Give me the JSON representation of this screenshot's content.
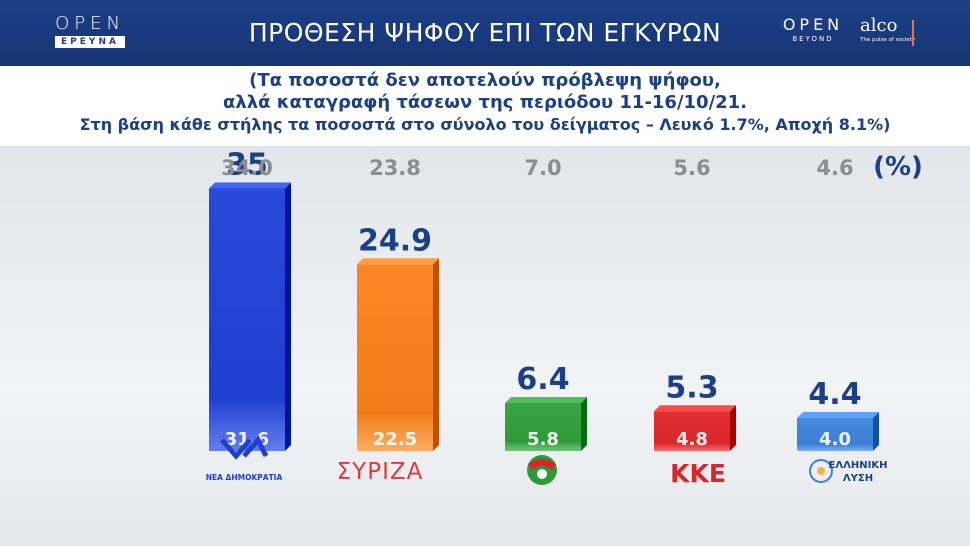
{
  "header": {
    "title": "ΠΡΟΘΕΣΗ ΨΗΦΟΥ ΕΠΙ ΤΩΝ ΕΓΚΥΡΩΝ",
    "logo_left_top": "OPEN",
    "logo_left_bottom": "ΕΡΕΥΝΑ",
    "logo_beyond_top": "OPEN",
    "logo_beyond_bottom": "BEYOND",
    "logo_alco": "alco",
    "logo_alco_tag": "The pulse of society"
  },
  "subtitle": {
    "line1": "(Τα ποσοστά δεν αποτελούν πρόβλεψη ψήφου,",
    "line2": "αλλά καταγραφή τάσεων της περιόδου 11-16/10/21.",
    "line3": "Στη βάση κάθε στήλης τα ποσοστά στο σύνολο του δείγματος – Λευκό 1.7%, Αποχή 8.1%)"
  },
  "colors": {
    "nd": "#1f3fd0",
    "syriza": "#f07d1a",
    "pasok": "#2f9a3a",
    "kke": "#d8262a",
    "el": "#3d7fd6",
    "header": "#1c3f86"
  },
  "chart_data": {
    "type": "bar",
    "unit_label": "(%)",
    "categories": [
      "ΝΕΑ ΔΗΜΟΚΡΑΤΙΑ",
      "ΣΥΡΙΖΑ",
      "ΚΙΝΑΛ",
      "ΚΚΕ",
      "ΕΛΛΗΝΙΚΗ ΛΥΣΗ"
    ],
    "category_labels": {
      "nd_text": "ΝΕΑ ΔΗΜΟΚΡΑΤΙΑ",
      "syriza_text": "ΣΥΡΙΖΑ",
      "kke_text": "ΚΚΕ",
      "el_line1": "ΕΛΛΗΝΙΚΗ",
      "el_line2": "ΛΥΣΗ"
    },
    "series": [
      {
        "values": [
          35,
          24.9,
          6.4,
          5.3,
          4.4
        ],
        "labels": [
          "35",
          "24.9",
          "6.4",
          "5.3",
          "4.4"
        ]
      },
      {
        "values": [
          31.6,
          22.5,
          5.8,
          4.8,
          4.0
        ],
        "labels": [
          "31.6",
          "22.5",
          "5.8",
          "4.8",
          "4.0"
        ]
      },
      {
        "values": [
          34.0,
          23.8,
          7.0,
          5.6,
          4.6
        ],
        "labels": [
          "34.0",
          "23.8",
          "7.0",
          "5.6",
          "4.6"
        ]
      }
    ]
  }
}
